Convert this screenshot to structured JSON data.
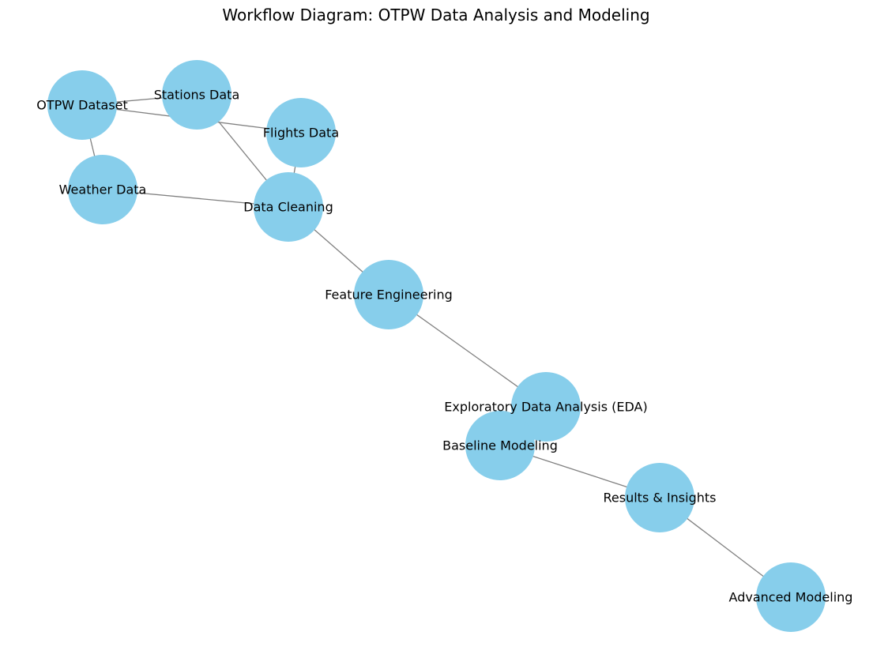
{
  "title": "Workflow Diagram: OTPW Data Analysis and Modeling",
  "colors": {
    "node_fill": "#87ceeb",
    "edge": "#808080",
    "label": "#000000"
  },
  "nodes": [
    {
      "id": "otpw",
      "label": "OTPW Dataset"
    },
    {
      "id": "stations",
      "label": "Stations Data"
    },
    {
      "id": "flights",
      "label": "Flights Data"
    },
    {
      "id": "weather",
      "label": "Weather Data"
    },
    {
      "id": "cleaning",
      "label": "Data Cleaning"
    },
    {
      "id": "features",
      "label": "Feature Engineering"
    },
    {
      "id": "eda",
      "label": "Exploratory Data Analysis (EDA)"
    },
    {
      "id": "baseline",
      "label": "Baseline Modeling"
    },
    {
      "id": "results",
      "label": "Results & Insights"
    },
    {
      "id": "advanced",
      "label": "Advanced Modeling"
    }
  ],
  "edges": [
    {
      "from": "otpw",
      "to": "stations"
    },
    {
      "from": "otpw",
      "to": "flights"
    },
    {
      "from": "otpw",
      "to": "weather"
    },
    {
      "from": "stations",
      "to": "cleaning"
    },
    {
      "from": "flights",
      "to": "cleaning"
    },
    {
      "from": "weather",
      "to": "cleaning"
    },
    {
      "from": "cleaning",
      "to": "features"
    },
    {
      "from": "features",
      "to": "eda"
    },
    {
      "from": "baseline",
      "to": "results"
    },
    {
      "from": "results",
      "to": "advanced"
    }
  ]
}
